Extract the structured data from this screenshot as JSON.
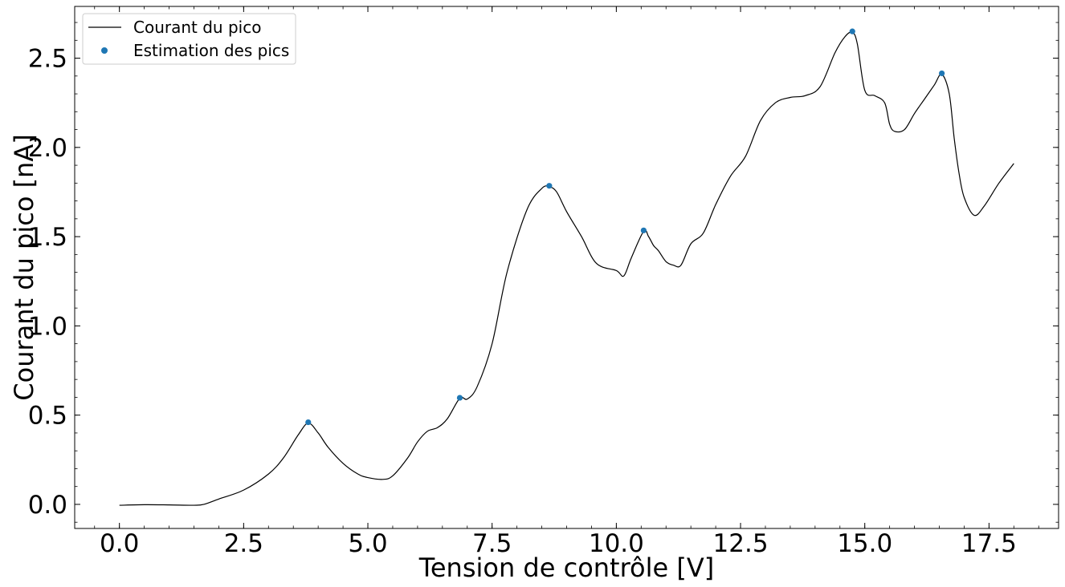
{
  "chart_data": {
    "type": "line",
    "title": "",
    "xlabel": "Tension de contrôle [V]",
    "ylabel": "Courant du pico [nA]",
    "xlim": [
      -0.9,
      18.9
    ],
    "ylim": [
      -0.135,
      2.79
    ],
    "x_ticks": [
      0.0,
      2.5,
      5.0,
      7.5,
      10.0,
      12.5,
      15.0,
      17.5
    ],
    "x_tick_labels": [
      "0.0",
      "2.5",
      "5.0",
      "7.5",
      "10.0",
      "12.5",
      "15.0",
      "17.5"
    ],
    "y_ticks": [
      0.0,
      0.5,
      1.0,
      1.5,
      2.0,
      2.5
    ],
    "y_tick_labels": [
      "0.0",
      "0.5",
      "1.0",
      "1.5",
      "2.0",
      "2.5"
    ],
    "grid": false,
    "legend_position": "top-left",
    "series": [
      {
        "name": "Courant du pico",
        "style": "line",
        "color": "#000000",
        "x": [
          0.0,
          0.5,
          1.0,
          1.5,
          1.7,
          2.0,
          2.5,
          3.0,
          3.3,
          3.6,
          3.8,
          4.0,
          4.2,
          4.5,
          4.8,
          5.0,
          5.3,
          5.5,
          5.8,
          6.0,
          6.2,
          6.4,
          6.6,
          6.85,
          7.0,
          7.2,
          7.5,
          7.8,
          8.2,
          8.5,
          8.65,
          8.8,
          9.0,
          9.3,
          9.6,
          10.0,
          10.15,
          10.3,
          10.55,
          10.65,
          10.75,
          10.85,
          11.0,
          11.15,
          11.3,
          11.5,
          11.75,
          12.0,
          12.3,
          12.6,
          12.9,
          13.2,
          13.5,
          13.8,
          14.1,
          14.4,
          14.6,
          14.75,
          14.85,
          15.0,
          15.2,
          15.4,
          15.5,
          15.6,
          15.8,
          16.0,
          16.2,
          16.4,
          16.55,
          16.7,
          16.8,
          16.9,
          17.0,
          17.2,
          17.4,
          17.7,
          18.0
        ],
        "y": [
          -0.005,
          -0.002,
          -0.003,
          -0.005,
          0.0,
          0.03,
          0.08,
          0.17,
          0.26,
          0.39,
          0.455,
          0.4,
          0.32,
          0.23,
          0.17,
          0.15,
          0.14,
          0.16,
          0.26,
          0.35,
          0.41,
          0.43,
          0.48,
          0.595,
          0.59,
          0.66,
          0.9,
          1.3,
          1.65,
          1.77,
          1.78,
          1.75,
          1.64,
          1.5,
          1.35,
          1.31,
          1.28,
          1.38,
          1.53,
          1.5,
          1.45,
          1.42,
          1.36,
          1.34,
          1.34,
          1.46,
          1.52,
          1.68,
          1.84,
          1.95,
          2.15,
          2.25,
          2.28,
          2.29,
          2.34,
          2.53,
          2.62,
          2.645,
          2.58,
          2.32,
          2.29,
          2.25,
          2.13,
          2.09,
          2.1,
          2.19,
          2.27,
          2.35,
          2.41,
          2.3,
          2.05,
          1.85,
          1.72,
          1.62,
          1.67,
          1.8,
          1.91
        ]
      },
      {
        "name": "Estimation des pics",
        "style": "scatter",
        "color": "#1f77b4",
        "x": [
          3.8,
          6.85,
          8.65,
          10.55,
          14.75,
          16.55
        ],
        "y": [
          0.46,
          0.597,
          1.785,
          1.535,
          2.65,
          2.415
        ]
      }
    ]
  }
}
